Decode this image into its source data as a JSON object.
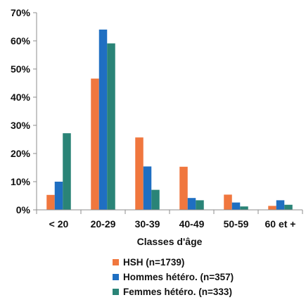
{
  "chart_data": {
    "type": "bar",
    "title": "",
    "xlabel": "Classes d'âge",
    "ylabel": "",
    "categories": [
      "< 20",
      "20-29",
      "30-39",
      "40-49",
      "50-59",
      "60 et +"
    ],
    "ylim": [
      0,
      70
    ],
    "yticks": [
      0,
      10,
      20,
      30,
      40,
      50,
      60,
      70
    ],
    "ytick_suffix": "%",
    "grid": false,
    "legend_position": "bottom",
    "series": [
      {
        "name": "HSH (n=1739)",
        "color": "#f0773e",
        "values": [
          5.3,
          46.6,
          25.7,
          15.3,
          5.4,
          1.4
        ]
      },
      {
        "name": "Hommes hétéro. (n=357)",
        "color": "#1f6fc2",
        "values": [
          10.0,
          64.0,
          15.4,
          4.2,
          2.6,
          3.4
        ]
      },
      {
        "name": "Femmes hétéro. (n=333)",
        "color": "#2a8477",
        "values": [
          27.2,
          59.1,
          7.1,
          3.4,
          1.2,
          1.8
        ]
      }
    ]
  }
}
